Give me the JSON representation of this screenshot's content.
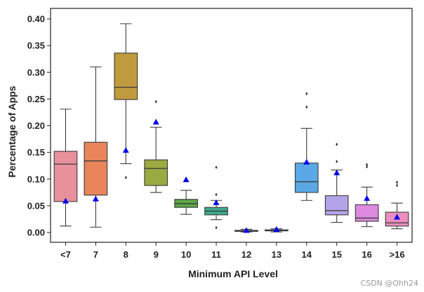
{
  "chart_data": {
    "type": "box",
    "title": "",
    "xlabel": "Minimum API Level",
    "ylabel": "Percentage of Apps",
    "ylim": [
      -0.02,
      0.42
    ],
    "yticks": [
      0.0,
      0.05,
      0.1,
      0.15,
      0.2,
      0.25,
      0.3,
      0.35,
      0.4
    ],
    "ytick_labels": [
      "0.00",
      "0.05",
      "0.10",
      "0.15",
      "0.20",
      "0.25",
      "0.30",
      "0.35",
      "0.40"
    ],
    "grid": false,
    "mean_marker": "blue triangle",
    "categories": [
      "<7",
      "7",
      "8",
      "9",
      "10",
      "11",
      "12",
      "13",
      "14",
      "15",
      "16",
      ">16"
    ],
    "boxes": [
      {
        "category": "<7",
        "color": "#e8909c",
        "whisker_low": 0.012,
        "q1": 0.058,
        "median": 0.128,
        "q3": 0.152,
        "whisker_high": 0.231,
        "mean": 0.059,
        "outliers": []
      },
      {
        "category": "7",
        "color": "#e8855a",
        "whisker_low": 0.01,
        "q1": 0.07,
        "median": 0.134,
        "q3": 0.169,
        "whisker_high": 0.31,
        "mean": 0.063,
        "outliers": []
      },
      {
        "category": "8",
        "color": "#c09a3e",
        "whisker_low": 0.129,
        "q1": 0.249,
        "median": 0.272,
        "q3": 0.336,
        "whisker_high": 0.391,
        "mean": 0.154,
        "outliers": [
          0.103
        ]
      },
      {
        "category": "9",
        "color": "#9aaa42",
        "whisker_low": 0.075,
        "q1": 0.088,
        "median": 0.12,
        "q3": 0.136,
        "whisker_high": 0.197,
        "mean": 0.207,
        "outliers": [
          0.245
        ]
      },
      {
        "category": "10",
        "color": "#5ca646",
        "whisker_low": 0.034,
        "q1": 0.047,
        "median": 0.054,
        "q3": 0.062,
        "whisker_high": 0.079,
        "mean": 0.099,
        "outliers": []
      },
      {
        "category": "11",
        "color": "#3da98c",
        "whisker_low": 0.024,
        "q1": 0.033,
        "median": 0.04,
        "q3": 0.047,
        "whisker_high": 0.06,
        "mean": 0.056,
        "outliers": [
          0.071,
          0.122,
          0.009
        ]
      },
      {
        "category": "12",
        "color": "#43ab9e",
        "whisker_low": 0.001,
        "q1": 0.002,
        "median": 0.003,
        "q3": 0.004,
        "whisker_high": 0.006,
        "mean": 0.004,
        "outliers": []
      },
      {
        "category": "13",
        "color": "#4ba8b8",
        "whisker_low": 0.001,
        "q1": 0.003,
        "median": 0.004,
        "q3": 0.005,
        "whisker_high": 0.007,
        "mean": 0.006,
        "outliers": []
      },
      {
        "category": "14",
        "color": "#5aa9e6",
        "whisker_low": 0.06,
        "q1": 0.075,
        "median": 0.095,
        "q3": 0.13,
        "whisker_high": 0.195,
        "mean": 0.132,
        "outliers": [
          0.235,
          0.26
        ]
      },
      {
        "category": "15",
        "color": "#b3a3e8",
        "whisker_low": 0.019,
        "q1": 0.033,
        "median": 0.041,
        "q3": 0.069,
        "whisker_high": 0.117,
        "mean": 0.112,
        "outliers": [
          0.133,
          0.165
        ]
      },
      {
        "category": "16",
        "color": "#dd8ae0",
        "whisker_low": 0.011,
        "q1": 0.021,
        "median": 0.027,
        "q3": 0.052,
        "whisker_high": 0.085,
        "mean": 0.064,
        "outliers": [
          0.123,
          0.127
        ]
      },
      {
        "category": ">16",
        "color": "#ec8fc0",
        "whisker_low": 0.007,
        "q1": 0.012,
        "median": 0.018,
        "q3": 0.038,
        "whisker_high": 0.055,
        "mean": 0.029,
        "outliers": [
          0.088,
          0.094
        ]
      }
    ]
  },
  "watermark": "CSDN @Ohh24"
}
